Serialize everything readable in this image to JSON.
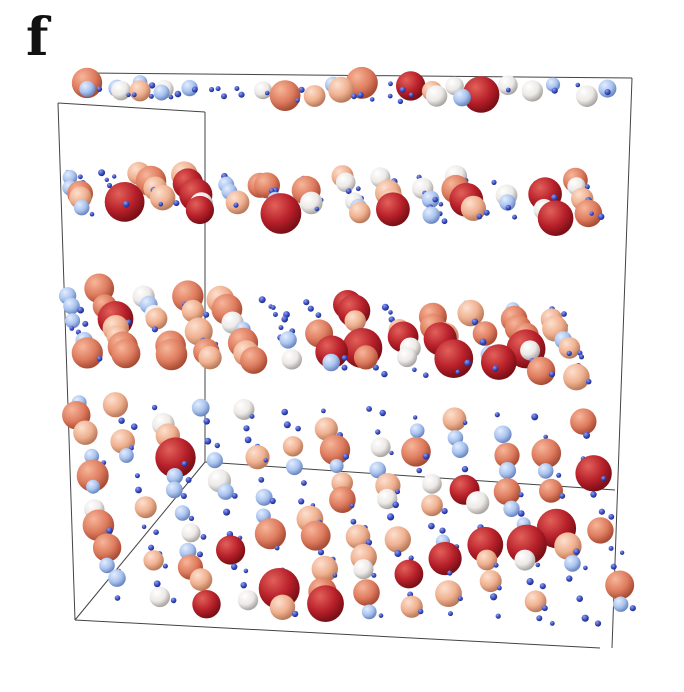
{
  "figure": {
    "panel_label": "f"
  },
  "legend_colors": {
    "small_site": "#3b4fc4",
    "light_blue": "#a9c3ee",
    "white": "#ece9e6",
    "peach": "#efb08f",
    "salmon": "#de7c5f",
    "dark_red": "#b8202a"
  }
}
